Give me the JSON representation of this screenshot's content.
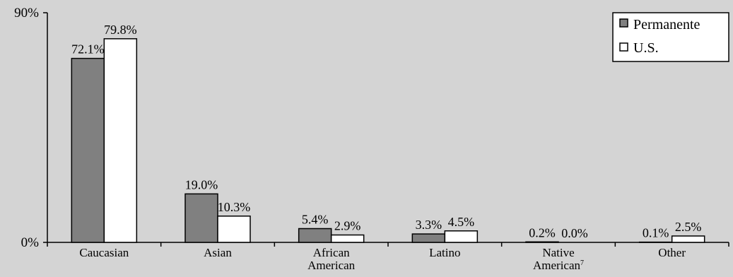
{
  "chart_data": {
    "type": "bar",
    "categories": [
      "Caucasian",
      "Asian",
      "African American",
      "Latino",
      "Native American",
      "Other"
    ],
    "category_lines": [
      [
        "Caucasian"
      ],
      [
        "Asian"
      ],
      [
        "African",
        "American"
      ],
      [
        "Latino"
      ],
      [
        "Native",
        "American"
      ],
      [
        "Other"
      ]
    ],
    "category_superscripts": [
      "",
      "",
      "",
      "",
      "7",
      ""
    ],
    "series": [
      {
        "name": "Permanente",
        "color": "#808080",
        "values": [
          72.1,
          19.0,
          5.4,
          3.3,
          0.2,
          0.1
        ],
        "labels": [
          "72.1%",
          "19.0%",
          "5.4%",
          "3.3%",
          "0.2%",
          "0.1%"
        ]
      },
      {
        "name": "U.S.",
        "color": "#ffffff",
        "values": [
          79.8,
          10.3,
          2.9,
          4.5,
          0.0,
          2.5
        ],
        "labels": [
          "79.8%",
          "10.3%",
          "2.9%",
          "4.5%",
          "0.0%",
          "2.5%"
        ]
      }
    ],
    "y_ticks": [
      {
        "value": 90,
        "label": "90%"
      },
      {
        "value": 0,
        "label": "0%"
      }
    ],
    "ylim": [
      0,
      90
    ],
    "grid": false,
    "legend_position": "top-right",
    "background": "#d4d4d4"
  }
}
